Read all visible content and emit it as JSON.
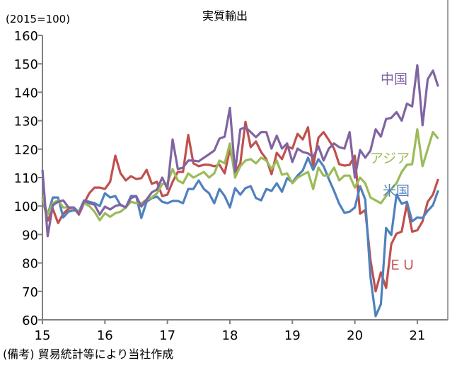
{
  "chart_data": {
    "type": "line",
    "title": "実質輸出",
    "unit_label": "(2015=100)",
    "note": "(備考) 貿易統計等により当社作成",
    "xlabel": "",
    "ylabel": "",
    "ylim": [
      60,
      160
    ],
    "yticks": [
      60,
      70,
      80,
      90,
      100,
      110,
      120,
      130,
      140,
      150,
      160
    ],
    "xtick_labels": [
      "15",
      "16",
      "17",
      "18",
      "19",
      "20",
      "21"
    ],
    "x_start": "2015-01",
    "x_end": "2021-05",
    "frequency": "monthly",
    "grid": false,
    "legend": "inline labels",
    "series": [
      {
        "name": "中国",
        "color": "#8064a2",
        "values": [
          112.7,
          89.4,
          100.3,
          101.5,
          102,
          99.5,
          99.5,
          97.3,
          101.8,
          101,
          100.5,
          97,
          99.8,
          98.8,
          100,
          100.5,
          99.5,
          102.8,
          103.5,
          99.8,
          102.3,
          104.8,
          105.8,
          110,
          106,
          123.4,
          113,
          113.5,
          116,
          116,
          115.7,
          117,
          118.2,
          119.5,
          123.7,
          124.4,
          134.5,
          112,
          127,
          127.7,
          126,
          124.2,
          126,
          126,
          120.2,
          124.7,
          120.2,
          122,
          115.5,
          120.2,
          119,
          118.5,
          117.2,
          121,
          116,
          120.2,
          122,
          120.7,
          120.2,
          126,
          110,
          119.7,
          117,
          119.5,
          127,
          124.4,
          130.6,
          131,
          133,
          130,
          136,
          135,
          149.5,
          128.4,
          144.6,
          147.6,
          142
        ]
      },
      {
        "name": "アジア",
        "color": "#9bbb59",
        "values": [
          103,
          97,
          101,
          102,
          99.5,
          99.5,
          99.5,
          98,
          101,
          100,
          98,
          95,
          97.5,
          96.2,
          97.5,
          98,
          99.5,
          101.5,
          101,
          101,
          102.3,
          103,
          104.5,
          107.7,
          108,
          113,
          109,
          108,
          111.5,
          110,
          111,
          112,
          110,
          111.5,
          116,
          115,
          122,
          110,
          114,
          116,
          116.5,
          115,
          117,
          116,
          113,
          116,
          111,
          111.5,
          108,
          110,
          111,
          112,
          106,
          113.5,
          110.7,
          110.7,
          113.5,
          109,
          110.7,
          110.7,
          106.5,
          110,
          108,
          103,
          102,
          101,
          103.5,
          106,
          108,
          112,
          114.5,
          114.7,
          127,
          114,
          120,
          126,
          123.7
        ]
      },
      {
        "name": "米国",
        "color": "#4f81bd",
        "values": [
          102,
          97,
          103,
          103,
          96,
          98,
          98.5,
          98,
          102,
          101.5,
          101,
          100,
          104.5,
          103,
          103.5,
          100.3,
          99.5,
          103.5,
          103.5,
          95.8,
          101.5,
          102.8,
          103.3,
          101.5,
          101,
          101.8,
          101.8,
          101,
          106,
          106,
          109,
          106,
          104.5,
          101,
          106,
          103.5,
          99.5,
          106.3,
          104,
          106.3,
          107,
          102.8,
          102,
          106,
          105.3,
          108,
          105,
          109.8,
          108.3,
          110.7,
          112.5,
          117,
          112.7,
          116.5,
          114,
          109.5,
          105.3,
          100.8,
          97.6,
          98,
          99.5,
          107,
          102.3,
          75,
          61.3,
          65.5,
          92.3,
          89.8,
          104,
          100.8,
          101.5,
          94.6,
          96,
          95.8,
          98.3,
          100.3,
          105.5
        ]
      },
      {
        "name": "ＥＵ",
        "color": "#c0504d",
        "values": [
          103,
          94.8,
          99,
          94,
          97.3,
          99,
          99.5,
          97,
          101,
          104.5,
          106.5,
          106.5,
          106,
          108.5,
          117.7,
          111.5,
          109,
          110.5,
          109.5,
          109.8,
          112.7,
          107.8,
          108.5,
          103.5,
          104,
          108.5,
          112,
          112,
          125,
          115,
          114,
          114.5,
          114.5,
          114,
          114.5,
          111.5,
          120,
          112,
          115,
          129.6,
          120.7,
          122.7,
          119,
          116.5,
          111.2,
          118.7,
          116.5,
          121,
          120.2,
          125.4,
          123.4,
          127.7,
          114,
          124,
          126,
          123.2,
          120.2,
          114.7,
          114.2,
          114.5,
          117.7,
          97.3,
          98.6,
          81,
          70,
          76.7,
          71.2,
          86.6,
          90.3,
          91,
          100.8,
          91,
          91.5,
          94.6,
          101.5,
          104,
          109.5
        ]
      }
    ]
  }
}
